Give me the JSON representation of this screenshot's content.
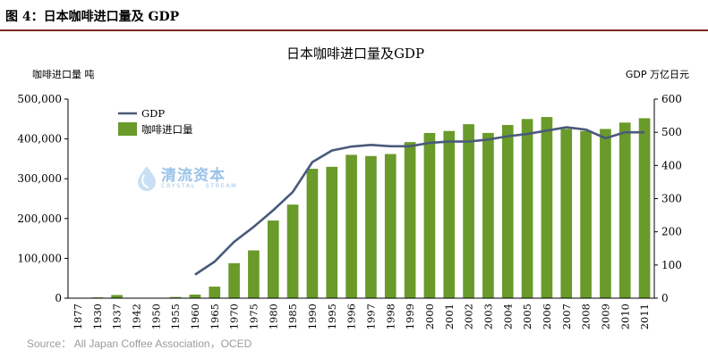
{
  "figure_caption": "图 4：日本咖啡进口量及 GDP",
  "source": "Source： All Japan Coffee Association，OCED",
  "watermark": {
    "name": "清流资本",
    "sub": "CRYSTAL   STREAM"
  },
  "colors": {
    "bar": "#6a9a2a",
    "line": "#4a5a7a",
    "rule": "#7b2a1e"
  },
  "chart_data": {
    "type": "bar",
    "title": "日本咖啡进口量及GDP",
    "ylabel": "咖啡进口量 吨",
    "y2label": "GDP 万亿日元",
    "ylim": [
      0,
      500000
    ],
    "y2lim": [
      0,
      600
    ],
    "yticks": [
      "0",
      "100,000",
      "200,000",
      "300,000",
      "400,000",
      "500,000"
    ],
    "y2ticks": [
      "0",
      "100",
      "200",
      "300",
      "400",
      "500",
      "600"
    ],
    "legend": {
      "line": "GDP",
      "bar": "咖啡进口量"
    },
    "legend_position": "top-left",
    "categories": [
      "1877",
      "1930",
      "1937",
      "1942",
      "1950",
      "1955",
      "1960",
      "1965",
      "1970",
      "1975",
      "1980",
      "1985",
      "1990",
      "1995",
      "1996",
      "1997",
      "1998",
      "1999",
      "2000",
      "2001",
      "2002",
      "2003",
      "2004",
      "2005",
      "2006",
      "2007",
      "2008",
      "2009",
      "2010",
      "2011"
    ],
    "series": [
      {
        "name": "咖啡进口量",
        "type": "bar",
        "values": [
          200,
          2000,
          8000,
          0,
          0,
          3000,
          9000,
          29000,
          88000,
          120000,
          195000,
          235000,
          325000,
          330000,
          360000,
          357000,
          362000,
          392000,
          415000,
          420000,
          437000,
          415000,
          435000,
          450000,
          455000,
          425000,
          420000,
          425000,
          441000,
          452000
        ]
      },
      {
        "name": "GDP",
        "type": "line",
        "axis": "right",
        "values": [
          null,
          null,
          null,
          null,
          null,
          null,
          71,
          110,
          170,
          215,
          265,
          320,
          410,
          445,
          457,
          462,
          458,
          458,
          468,
          472,
          472,
          478,
          488,
          495,
          505,
          515,
          508,
          482,
          500,
          500
        ]
      }
    ]
  }
}
